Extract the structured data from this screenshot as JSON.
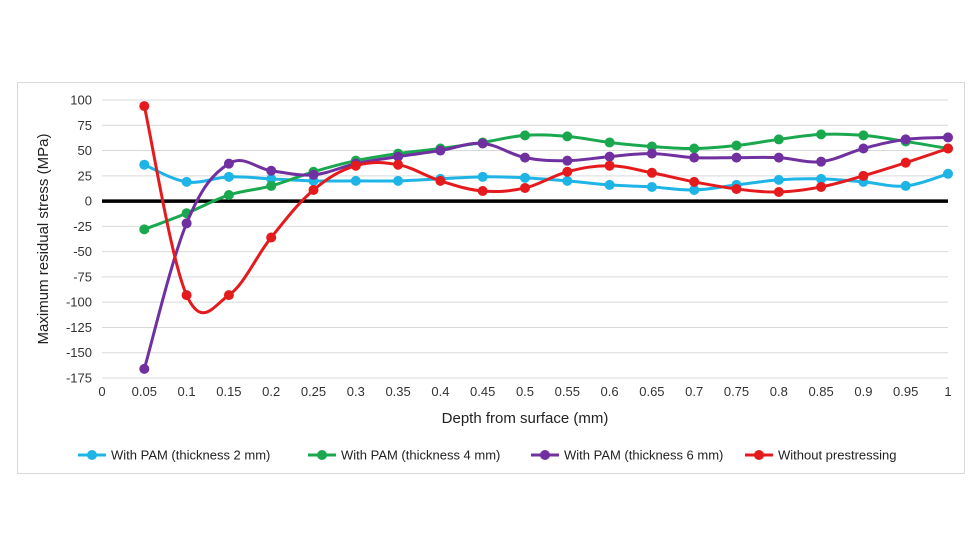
{
  "chart_data": {
    "type": "line",
    "title": "",
    "xlabel": "Depth from surface (mm)",
    "ylabel": "Maximum residual stress (MPa)",
    "xlim": [
      0,
      1
    ],
    "ylim": [
      -175,
      100
    ],
    "x_ticks": [
      "0",
      "0.05",
      "0.1",
      "0.15",
      "0.2",
      "0.25",
      "0.3",
      "0.35",
      "0.4",
      "0.45",
      "0.5",
      "0.55",
      "0.6",
      "0.65",
      "0.7",
      "0.75",
      "0.8",
      "0.85",
      "0.9",
      "0.95",
      "1"
    ],
    "y_ticks": [
      "100",
      "75",
      "50",
      "25",
      "0",
      "-25",
      "-50",
      "-75",
      "-100",
      "-125",
      "-150",
      "-175"
    ],
    "grid": true,
    "legend_position": "bottom",
    "x": [
      0.05,
      0.1,
      0.15,
      0.2,
      0.25,
      0.3,
      0.35,
      0.4,
      0.45,
      0.5,
      0.55,
      0.6,
      0.65,
      0.7,
      0.75,
      0.8,
      0.85,
      0.9,
      0.95,
      1
    ],
    "series": [
      {
        "name": "With PAM (thickness 2 mm)",
        "color": "#1eb4e6",
        "values": [
          36,
          19,
          24,
          22,
          20,
          20,
          20,
          22,
          24,
          23,
          20,
          16,
          14,
          11,
          16,
          21,
          22,
          19,
          15,
          27
        ]
      },
      {
        "name": "With PAM (thickness 4 mm)",
        "color": "#1aa84f",
        "values": [
          -28,
          -12,
          6,
          15,
          29,
          40,
          47,
          52,
          58,
          65,
          64,
          58,
          54,
          52,
          55,
          61,
          66,
          65,
          59,
          52
        ]
      },
      {
        "name": "With PAM (thickness 6 mm)",
        "color": "#7030a0",
        "values": [
          -166,
          -22,
          37,
          30,
          26,
          37,
          44,
          50,
          57,
          43,
          40,
          44,
          47,
          43,
          43,
          43,
          39,
          52,
          61,
          63
        ]
      },
      {
        "name": "Without prestressing",
        "color": "#e41a1c",
        "values": [
          94,
          -93,
          -93,
          -36,
          11,
          35,
          36,
          20,
          10,
          13,
          29,
          35,
          28,
          19,
          12,
          9,
          14,
          25,
          38,
          52
        ]
      }
    ]
  }
}
